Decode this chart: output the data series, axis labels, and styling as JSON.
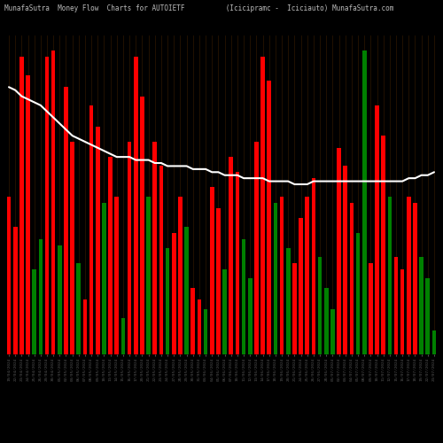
{
  "title": "MunafaSutra  Money Flow  Charts for AUTOIETF          (Icicipramc -  Iciciauto) MunafaSutra.com",
  "background_color": "#000000",
  "line_color": "#ffffff",
  "grid_color": "#2a1500",
  "title_color": "#bbbbbb",
  "title_fontsize": 5.5,
  "dates": [
    "19/04/2024",
    "22/04/2024",
    "23/04/2024",
    "24/04/2024",
    "25/04/2024",
    "26/04/2024",
    "29/04/2024",
    "30/04/2024",
    "01/05/2024",
    "02/05/2024",
    "03/05/2024",
    "06/05/2024",
    "07/05/2024",
    "08/05/2024",
    "09/05/2024",
    "10/05/2024",
    "13/05/2024",
    "14/05/2024",
    "15/05/2024",
    "16/05/2024",
    "17/05/2024",
    "20/05/2024",
    "21/05/2024",
    "22/05/2024",
    "23/05/2024",
    "24/05/2024",
    "27/05/2024",
    "28/05/2024",
    "29/05/2024",
    "30/05/2024",
    "31/05/2024",
    "03/06/2024",
    "04/06/2024",
    "05/06/2024",
    "06/06/2024",
    "07/06/2024",
    "10/06/2024",
    "11/06/2024",
    "12/06/2024",
    "13/06/2024",
    "14/06/2024",
    "17/06/2024",
    "18/06/2024",
    "19/06/2024",
    "20/06/2024",
    "21/06/2024",
    "24/06/2024",
    "25/06/2024",
    "26/06/2024",
    "27/06/2024",
    "28/06/2024",
    "01/07/2024",
    "02/07/2024",
    "03/07/2024",
    "04/07/2024",
    "05/07/2024",
    "08/07/2024",
    "09/07/2024",
    "10/07/2024",
    "11/07/2024",
    "12/07/2024",
    "15/07/2024",
    "16/07/2024",
    "17/07/2024",
    "18/07/2024",
    "19/07/2024",
    "22/07/2024",
    "23/07/2024"
  ],
  "values": [
    52,
    42,
    98,
    92,
    28,
    38,
    98,
    100,
    36,
    88,
    70,
    30,
    18,
    82,
    75,
    50,
    65,
    52,
    12,
    70,
    98,
    85,
    52,
    70,
    62,
    35,
    40,
    52,
    42,
    22,
    18,
    15,
    55,
    48,
    28,
    65,
    60,
    38,
    25,
    70,
    98,
    90,
    50,
    52,
    35,
    30,
    45,
    52,
    58,
    32,
    22,
    15,
    68,
    62,
    50,
    40,
    100,
    30,
    82,
    72,
    52,
    32,
    28,
    52,
    50,
    32,
    25,
    8
  ],
  "colors": [
    "red",
    "red",
    "red",
    "red",
    "green",
    "green",
    "red",
    "red",
    "green",
    "red",
    "red",
    "green",
    "red",
    "red",
    "red",
    "green",
    "red",
    "red",
    "green",
    "red",
    "red",
    "red",
    "green",
    "red",
    "red",
    "green",
    "red",
    "red",
    "green",
    "red",
    "red",
    "green",
    "red",
    "red",
    "green",
    "red",
    "red",
    "green",
    "green",
    "red",
    "red",
    "red",
    "green",
    "red",
    "green",
    "red",
    "red",
    "red",
    "red",
    "green",
    "green",
    "green",
    "red",
    "red",
    "red",
    "green",
    "green",
    "red",
    "red",
    "red",
    "green",
    "red",
    "red",
    "red",
    "red",
    "green",
    "green",
    "green"
  ],
  "line_values": [
    88,
    87,
    85,
    84,
    83,
    82,
    80,
    78,
    76,
    74,
    72,
    71,
    70,
    69,
    68,
    67,
    66,
    65,
    65,
    65,
    64,
    64,
    64,
    63,
    63,
    62,
    62,
    62,
    62,
    61,
    61,
    61,
    60,
    60,
    59,
    59,
    59,
    58,
    58,
    58,
    58,
    57,
    57,
    57,
    57,
    56,
    56,
    56,
    57,
    57,
    57,
    57,
    57,
    57,
    57,
    57,
    57,
    57,
    57,
    57,
    57,
    57,
    57,
    58,
    58,
    59,
    59,
    60
  ],
  "ylim": [
    0,
    105
  ],
  "figsize": [
    5.0,
    5.0
  ],
  "dpi": 100
}
